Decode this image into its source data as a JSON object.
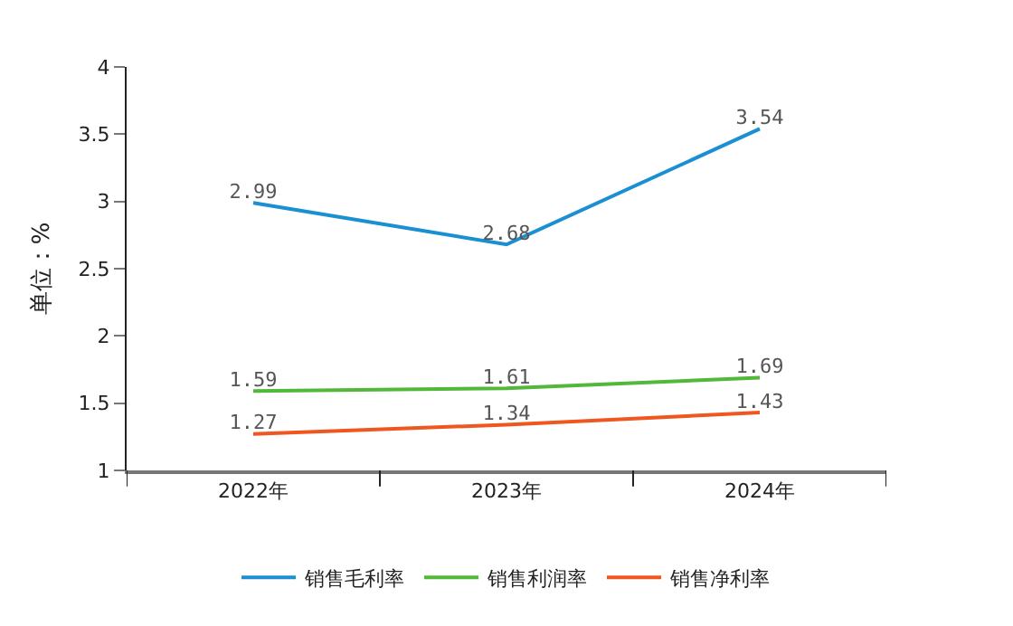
{
  "chart_data": {
    "type": "line",
    "ylabel": "单位：%",
    "categories": [
      "2022年",
      "2023年",
      "2024年"
    ],
    "series": [
      {
        "name": "销售毛利率",
        "color": "#1a8fd2",
        "values": [
          2.99,
          2.68,
          3.54
        ]
      },
      {
        "name": "销售利润率",
        "color": "#52b83a",
        "values": [
          1.59,
          1.61,
          1.69
        ]
      },
      {
        "name": "销售净利率",
        "color": "#f0561f",
        "values": [
          1.27,
          1.34,
          1.43
        ]
      }
    ],
    "ylim": [
      1,
      4
    ],
    "yticks": [
      1,
      1.5,
      2,
      2.5,
      3,
      3.5,
      4
    ],
    "legend": "bottom",
    "data_labels": true,
    "marker": "none",
    "line_style": "solid"
  }
}
